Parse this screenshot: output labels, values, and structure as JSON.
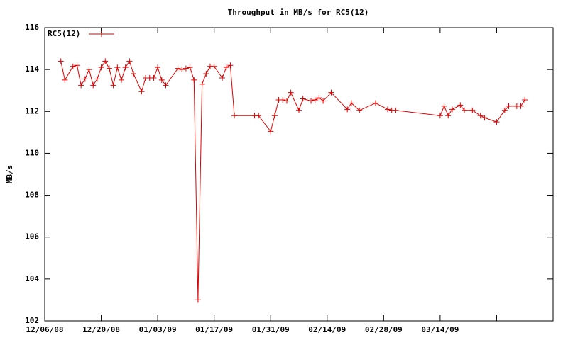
{
  "chart_data": {
    "type": "line",
    "title": "Throughput in MB/s for RC5(12)",
    "y_label": "MB/s",
    "legend": "top-left",
    "x": [
      "12/10/08",
      "12/11/08",
      "12/13/08",
      "12/14/08",
      "12/15/08",
      "12/16/08",
      "12/17/08",
      "12/18/08",
      "12/19/08",
      "12/20/08",
      "12/21/08",
      "12/22/08",
      "12/23/08",
      "12/24/08",
      "12/25/08",
      "12/26/08",
      "12/27/08",
      "12/28/08",
      "12/30/08",
      "12/31/08",
      "01/01/09",
      "01/02/09",
      "01/03/09",
      "01/04/09",
      "01/05/09",
      "01/08/09",
      "01/09/09",
      "01/10/09",
      "01/11/09",
      "01/12/09",
      "01/13/09",
      "01/14/09",
      "01/15/09",
      "01/16/09",
      "01/17/09",
      "01/19/09",
      "01/20/09",
      "01/21/09",
      "01/22/09",
      "01/27/09",
      "01/28/09",
      "01/31/09",
      "02/01/09",
      "02/02/09",
      "02/03/09",
      "02/04/09",
      "02/05/09",
      "02/07/09",
      "02/08/09",
      "02/10/09",
      "02/11/09",
      "02/12/09",
      "02/13/09",
      "02/15/09",
      "02/19/09",
      "02/20/09",
      "02/22/09",
      "02/26/09",
      "03/01/09",
      "03/02/09",
      "03/03/09",
      "03/14/09",
      "03/15/09",
      "03/16/09",
      "03/17/09",
      "03/19/09",
      "03/20/09",
      "03/22/09",
      "03/24/09",
      "03/25/09",
      "03/28/09",
      "03/30/09",
      "03/31/09",
      "04/02/09",
      "04/03/09",
      "04/04/09"
    ],
    "series": [
      {
        "name": "RC5(12)",
        "color": "#dd0000",
        "values": [
          114.4,
          113.5,
          114.15,
          114.2,
          113.25,
          113.55,
          114.0,
          113.25,
          113.55,
          114.1,
          114.4,
          114.05,
          113.25,
          114.1,
          113.5,
          114.1,
          114.4,
          113.8,
          112.95,
          113.6,
          113.6,
          113.6,
          114.1,
          113.5,
          113.25,
          114.05,
          114.0,
          114.05,
          114.1,
          113.5,
          103.0,
          113.3,
          113.8,
          114.15,
          114.15,
          113.6,
          114.1,
          114.2,
          111.8,
          111.8,
          111.8,
          111.05,
          111.8,
          112.55,
          112.55,
          112.5,
          112.9,
          112.05,
          112.6,
          112.5,
          112.55,
          112.65,
          112.5,
          112.9,
          112.1,
          112.4,
          112.05,
          112.4,
          112.1,
          112.05,
          112.05,
          111.8,
          112.25,
          111.8,
          112.1,
          112.3,
          112.05,
          112.05,
          111.8,
          111.7,
          111.5,
          112.05,
          112.25,
          112.25,
          112.25,
          112.55
        ]
      }
    ],
    "xlim": [
      "12/06/08",
      "04/11/09"
    ],
    "xticks": [
      "12/06/08",
      "12/20/08",
      "01/03/09",
      "01/17/09",
      "01/31/09",
      "02/14/09",
      "02/28/09",
      "03/14/09",
      {
        "value": "03/28/09",
        "label": null
      }
    ],
    "ylim": [
      102,
      116
    ],
    "yticks": [
      102,
      104,
      106,
      108,
      110,
      112,
      114,
      116
    ]
  }
}
